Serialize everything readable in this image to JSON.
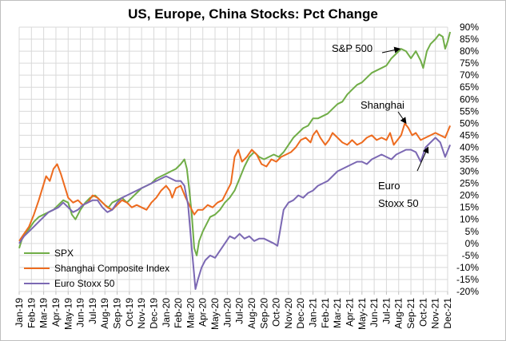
{
  "chart_data": {
    "type": "line",
    "title": "US, Europe, China Stocks: Pct Change",
    "xlabel": "",
    "ylabel": "",
    "ylim": [
      -20,
      90
    ],
    "yticks": [
      "90%",
      "85%",
      "80%",
      "75%",
      "70%",
      "65%",
      "60%",
      "55%",
      "50%",
      "45%",
      "40%",
      "35%",
      "30%",
      "25%",
      "20%",
      "15%",
      "10%",
      "5%",
      "0%",
      "-5%",
      "-10%",
      "-15%",
      "-20%"
    ],
    "xticks": [
      "Jan-19",
      "Feb-19",
      "Mar-19",
      "Apr-19",
      "May-19",
      "Jun-19",
      "Jul-19",
      "Aug-19",
      "Sep-19",
      "Oct-19",
      "Nov-19",
      "Dec-19",
      "Jan-20",
      "Feb-20",
      "Mar-20",
      "Apr-20",
      "May-20",
      "Jun-20",
      "Jul-20",
      "Aug-20",
      "Sep-20",
      "Oct-20",
      "Nov-20",
      "Dec-20",
      "Jan-21",
      "Feb-21",
      "Mar-21",
      "Apr-21",
      "May-21",
      "Jun-21",
      "Jul-21",
      "Aug-21",
      "Sep-21",
      "Oct-21",
      "Nov-21",
      "Dec-21"
    ],
    "grid": true,
    "legend_position": "bottom-left",
    "series": [
      {
        "name": "SPX",
        "color": "#70ad47",
        "values": [
          [
            0,
            -2
          ],
          [
            0.3,
            3
          ],
          [
            0.8,
            6
          ],
          [
            1.2,
            9
          ],
          [
            1.6,
            11
          ],
          [
            2,
            12
          ],
          [
            2.4,
            13
          ],
          [
            2.8,
            14
          ],
          [
            3.2,
            16
          ],
          [
            3.6,
            18
          ],
          [
            4,
            17
          ],
          [
            4.3,
            12
          ],
          [
            4.6,
            10
          ],
          [
            5,
            14
          ],
          [
            5.4,
            17
          ],
          [
            5.8,
            19
          ],
          [
            6.2,
            20
          ],
          [
            6.6,
            18
          ],
          [
            7,
            16
          ],
          [
            7.3,
            15
          ],
          [
            7.6,
            17
          ],
          [
            8,
            18
          ],
          [
            8.4,
            19
          ],
          [
            8.8,
            17
          ],
          [
            9.2,
            19
          ],
          [
            9.6,
            21
          ],
          [
            10,
            23
          ],
          [
            10.4,
            24
          ],
          [
            10.8,
            25
          ],
          [
            11.2,
            27
          ],
          [
            11.6,
            28
          ],
          [
            12,
            29
          ],
          [
            12.4,
            30
          ],
          [
            12.8,
            31
          ],
          [
            13.2,
            33
          ],
          [
            13.5,
            35
          ],
          [
            13.7,
            31
          ],
          [
            13.9,
            22
          ],
          [
            14.1,
            12
          ],
          [
            14.3,
            -2
          ],
          [
            14.5,
            -5
          ],
          [
            14.7,
            1
          ],
          [
            15,
            5
          ],
          [
            15.3,
            8
          ],
          [
            15.6,
            11
          ],
          [
            16,
            12
          ],
          [
            16.4,
            14
          ],
          [
            16.8,
            17
          ],
          [
            17.2,
            19
          ],
          [
            17.6,
            22
          ],
          [
            18,
            27
          ],
          [
            18.4,
            32
          ],
          [
            18.8,
            36
          ],
          [
            19.2,
            38
          ],
          [
            19.6,
            36
          ],
          [
            20,
            35
          ],
          [
            20.4,
            36
          ],
          [
            20.8,
            37
          ],
          [
            21.2,
            36
          ],
          [
            21.6,
            38
          ],
          [
            22,
            41
          ],
          [
            22.4,
            44
          ],
          [
            22.8,
            46
          ],
          [
            23.2,
            48
          ],
          [
            23.6,
            49
          ],
          [
            24,
            52
          ],
          [
            24.4,
            52
          ],
          [
            24.8,
            53
          ],
          [
            25.2,
            54
          ],
          [
            25.6,
            56
          ],
          [
            26,
            58
          ],
          [
            26.4,
            59
          ],
          [
            26.8,
            62
          ],
          [
            27.2,
            64
          ],
          [
            27.6,
            66
          ],
          [
            28,
            67
          ],
          [
            28.4,
            69
          ],
          [
            28.8,
            71
          ],
          [
            29.2,
            72
          ],
          [
            29.6,
            73
          ],
          [
            30,
            74
          ],
          [
            30.4,
            77
          ],
          [
            30.8,
            79
          ],
          [
            31.2,
            81
          ],
          [
            31.6,
            80
          ],
          [
            32,
            77
          ],
          [
            32.4,
            80
          ],
          [
            32.8,
            76
          ],
          [
            33,
            73
          ],
          [
            33.3,
            80
          ],
          [
            33.6,
            83
          ],
          [
            34,
            85
          ],
          [
            34.3,
            87
          ],
          [
            34.6,
            86
          ],
          [
            34.8,
            81
          ],
          [
            35,
            84
          ],
          [
            35.2,
            88
          ]
        ]
      },
      {
        "name": "Shanghai Composite Index",
        "color": "#ed6b1f",
        "values": [
          [
            0,
            1
          ],
          [
            0.4,
            4
          ],
          [
            0.8,
            7
          ],
          [
            1.2,
            12
          ],
          [
            1.6,
            18
          ],
          [
            1.9,
            23
          ],
          [
            2.2,
            28
          ],
          [
            2.5,
            26
          ],
          [
            2.8,
            31
          ],
          [
            3.1,
            33
          ],
          [
            3.4,
            29
          ],
          [
            3.7,
            24
          ],
          [
            4,
            19
          ],
          [
            4.4,
            17
          ],
          [
            4.8,
            18
          ],
          [
            5.2,
            16
          ],
          [
            5.6,
            17
          ],
          [
            6,
            20
          ],
          [
            6.4,
            19
          ],
          [
            6.8,
            17
          ],
          [
            7.2,
            15
          ],
          [
            7.6,
            14
          ],
          [
            8,
            16
          ],
          [
            8.4,
            18
          ],
          [
            8.8,
            17
          ],
          [
            9.2,
            15
          ],
          [
            9.6,
            16
          ],
          [
            10,
            15
          ],
          [
            10.4,
            14
          ],
          [
            10.8,
            17
          ],
          [
            11.2,
            19
          ],
          [
            11.6,
            22
          ],
          [
            12,
            24
          ],
          [
            12.3,
            22
          ],
          [
            12.5,
            19
          ],
          [
            12.8,
            23
          ],
          [
            13.2,
            24
          ],
          [
            13.6,
            19
          ],
          [
            14,
            15
          ],
          [
            14.3,
            12
          ],
          [
            14.6,
            14
          ],
          [
            15,
            14
          ],
          [
            15.4,
            16
          ],
          [
            15.8,
            15
          ],
          [
            16.2,
            17
          ],
          [
            16.6,
            18
          ],
          [
            17,
            22
          ],
          [
            17.3,
            25
          ],
          [
            17.6,
            36
          ],
          [
            17.9,
            39
          ],
          [
            18.2,
            34
          ],
          [
            18.6,
            36
          ],
          [
            19,
            39
          ],
          [
            19.4,
            37
          ],
          [
            19.8,
            33
          ],
          [
            20.2,
            32
          ],
          [
            20.6,
            35
          ],
          [
            21,
            34
          ],
          [
            21.4,
            36
          ],
          [
            21.8,
            37
          ],
          [
            22.2,
            38
          ],
          [
            22.6,
            40
          ],
          [
            23,
            43
          ],
          [
            23.4,
            44
          ],
          [
            23.8,
            42
          ],
          [
            24,
            45
          ],
          [
            24.3,
            47
          ],
          [
            24.6,
            44
          ],
          [
            25,
            41
          ],
          [
            25.3,
            43
          ],
          [
            25.6,
            46
          ],
          [
            26,
            44
          ],
          [
            26.4,
            42
          ],
          [
            26.8,
            41
          ],
          [
            27.2,
            43
          ],
          [
            27.6,
            41
          ],
          [
            28,
            42
          ],
          [
            28.4,
            44
          ],
          [
            28.8,
            45
          ],
          [
            29.2,
            43
          ],
          [
            29.6,
            44
          ],
          [
            30,
            43
          ],
          [
            30.3,
            46
          ],
          [
            30.6,
            41
          ],
          [
            30.9,
            43
          ],
          [
            31.2,
            45
          ],
          [
            31.5,
            50
          ],
          [
            31.8,
            48
          ],
          [
            32.1,
            45
          ],
          [
            32.4,
            46
          ],
          [
            32.8,
            43
          ],
          [
            33.2,
            44
          ],
          [
            33.6,
            45
          ],
          [
            34,
            46
          ],
          [
            34.4,
            45
          ],
          [
            34.8,
            44
          ],
          [
            35.2,
            49
          ]
        ]
      },
      {
        "name": "Euro Stoxx 50",
        "color": "#7b68b3",
        "values": [
          [
            0,
            0
          ],
          [
            0.4,
            3
          ],
          [
            0.8,
            5
          ],
          [
            1.2,
            7
          ],
          [
            1.6,
            9
          ],
          [
            2,
            11
          ],
          [
            2.4,
            13
          ],
          [
            2.8,
            14
          ],
          [
            3.2,
            15
          ],
          [
            3.6,
            17
          ],
          [
            4,
            15
          ],
          [
            4.4,
            13
          ],
          [
            4.8,
            14
          ],
          [
            5.2,
            16
          ],
          [
            5.6,
            17
          ],
          [
            6,
            18
          ],
          [
            6.4,
            18
          ],
          [
            6.8,
            15
          ],
          [
            7.2,
            13
          ],
          [
            7.6,
            14
          ],
          [
            8,
            17
          ],
          [
            8.4,
            19
          ],
          [
            8.8,
            20
          ],
          [
            9.2,
            21
          ],
          [
            9.6,
            22
          ],
          [
            10,
            23
          ],
          [
            10.4,
            24
          ],
          [
            10.8,
            25
          ],
          [
            11.2,
            26
          ],
          [
            11.6,
            27
          ],
          [
            12,
            28
          ],
          [
            12.4,
            27
          ],
          [
            12.8,
            26
          ],
          [
            13.2,
            26
          ],
          [
            13.5,
            24
          ],
          [
            13.8,
            16
          ],
          [
            14.1,
            -2
          ],
          [
            14.4,
            -19
          ],
          [
            14.6,
            -15
          ],
          [
            14.9,
            -10
          ],
          [
            15.2,
            -7
          ],
          [
            15.6,
            -5
          ],
          [
            16,
            -6
          ],
          [
            16.4,
            -3
          ],
          [
            16.8,
            0
          ],
          [
            17.2,
            3
          ],
          [
            17.6,
            2
          ],
          [
            18,
            4
          ],
          [
            18.4,
            2
          ],
          [
            18.8,
            3
          ],
          [
            19.2,
            1
          ],
          [
            19.6,
            2
          ],
          [
            20,
            2
          ],
          [
            20.4,
            1
          ],
          [
            20.8,
            0
          ],
          [
            21.1,
            -1
          ],
          [
            21.3,
            5
          ],
          [
            21.6,
            14
          ],
          [
            22,
            17
          ],
          [
            22.4,
            18
          ],
          [
            22.8,
            20
          ],
          [
            23.2,
            19
          ],
          [
            23.6,
            21
          ],
          [
            24,
            22
          ],
          [
            24.4,
            24
          ],
          [
            24.8,
            25
          ],
          [
            25.2,
            26
          ],
          [
            25.6,
            28
          ],
          [
            26,
            30
          ],
          [
            26.4,
            31
          ],
          [
            26.8,
            32
          ],
          [
            27.2,
            33
          ],
          [
            27.6,
            34
          ],
          [
            28,
            34
          ],
          [
            28.4,
            33
          ],
          [
            28.8,
            35
          ],
          [
            29.2,
            36
          ],
          [
            29.6,
            37
          ],
          [
            30,
            36
          ],
          [
            30.4,
            35
          ],
          [
            30.8,
            37
          ],
          [
            31.2,
            38
          ],
          [
            31.6,
            39
          ],
          [
            32,
            39
          ],
          [
            32.4,
            38
          ],
          [
            32.8,
            34
          ],
          [
            33.2,
            40
          ],
          [
            33.6,
            42
          ],
          [
            34,
            44
          ],
          [
            34.4,
            42
          ],
          [
            34.8,
            36
          ],
          [
            35.2,
            41
          ]
        ]
      }
    ],
    "annotations": [
      {
        "text": "S&P 500",
        "target": [
          31.1,
          81
        ]
      },
      {
        "text": "Shanghai",
        "target": [
          31.6,
          50
        ]
      },
      {
        "text": "Euro",
        "line2": "Stoxx 50",
        "target": [
          33.4,
          40
        ]
      }
    ]
  }
}
